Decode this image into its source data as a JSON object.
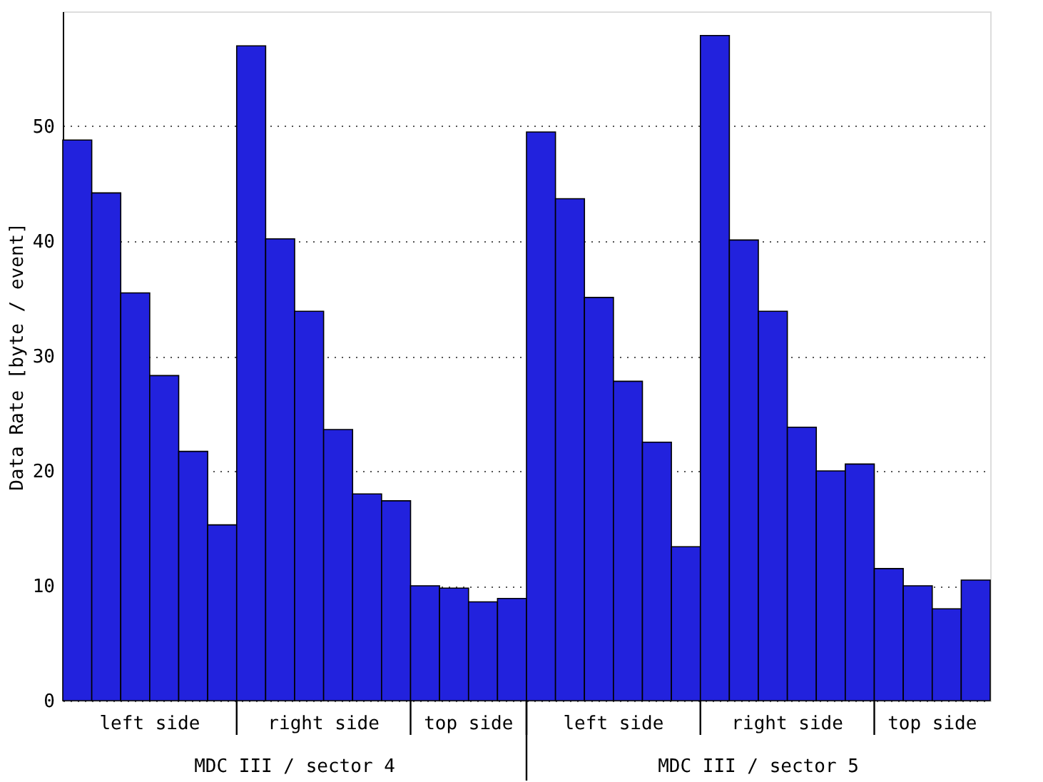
{
  "chart_data": {
    "type": "bar",
    "ylabel": "Data Rate [byte / event]",
    "categories": [
      null,
      null,
      null,
      null,
      null,
      null,
      null,
      null,
      null,
      null,
      null,
      null,
      null,
      null,
      null,
      null,
      null,
      null,
      null,
      null,
      null,
      null,
      null,
      null,
      null,
      null,
      null,
      null,
      null,
      null,
      null,
      null
    ],
    "values": [
      48.8,
      44.2,
      35.5,
      28.3,
      21.7,
      15.3,
      57.0,
      40.2,
      33.9,
      23.6,
      18.0,
      17.4,
      10.0,
      9.8,
      8.6,
      8.9,
      49.5,
      43.7,
      35.1,
      27.8,
      22.5,
      13.4,
      57.9,
      40.1,
      33.9,
      23.8,
      20.0,
      20.6,
      11.5,
      10.0,
      8.0,
      10.5
    ],
    "color": "#2222dd",
    "ylim": [
      0,
      60
    ],
    "yticks": [
      0,
      10,
      20,
      30,
      40,
      50
    ],
    "grid": "y",
    "annotations": [
      "left side",
      "right side",
      "top side",
      "MDC III / sector 4",
      "left side",
      "right side",
      "top side",
      "MDC III / sector 5"
    ]
  }
}
